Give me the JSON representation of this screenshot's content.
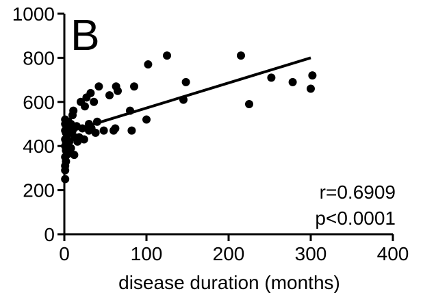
{
  "chart_data": {
    "type": "scatter",
    "panel_label": "B",
    "title": "",
    "xlabel": "disease duration (months)",
    "ylabel": "",
    "xlim": [
      0,
      400
    ],
    "ylim": [
      0,
      1000
    ],
    "x_ticks": [
      0,
      100,
      200,
      300,
      400
    ],
    "y_ticks": [
      0,
      200,
      400,
      600,
      800,
      1000
    ],
    "x_tick_labels": [
      "0",
      "100",
      "200",
      "300",
      "400"
    ],
    "y_tick_labels": [
      "0",
      "200",
      "400",
      "600",
      "800",
      "1000"
    ],
    "grid": false,
    "annotations": [
      "r=0.6909",
      "p<0.0001"
    ],
    "series": [
      {
        "values": [
          [
            1,
            250
          ],
          [
            1,
            290
          ],
          [
            1,
            310
          ],
          [
            1,
            350
          ],
          [
            1,
            400
          ],
          [
            1,
            430
          ],
          [
            1,
            470
          ],
          [
            1,
            500
          ],
          [
            1,
            520
          ],
          [
            2,
            330
          ],
          [
            2,
            380
          ],
          [
            2,
            420
          ],
          [
            2,
            460
          ],
          [
            2,
            510
          ],
          [
            3,
            360
          ],
          [
            3,
            440
          ],
          [
            3,
            490
          ],
          [
            4,
            410
          ],
          [
            4,
            480
          ],
          [
            5,
            370
          ],
          [
            5,
            460
          ],
          [
            5,
            510
          ],
          [
            6,
            420
          ],
          [
            7,
            460
          ],
          [
            8,
            500
          ],
          [
            8,
            390
          ],
          [
            10,
            540
          ],
          [
            10,
            470
          ],
          [
            11,
            560
          ],
          [
            12,
            360
          ],
          [
            13,
            440
          ],
          [
            15,
            490
          ],
          [
            16,
            420
          ],
          [
            18,
            440
          ],
          [
            20,
            600
          ],
          [
            22,
            480
          ],
          [
            24,
            430
          ],
          [
            25,
            580
          ],
          [
            27,
            620
          ],
          [
            30,
            500
          ],
          [
            30,
            470
          ],
          [
            32,
            640
          ],
          [
            33,
            480
          ],
          [
            36,
            600
          ],
          [
            38,
            460
          ],
          [
            40,
            510
          ],
          [
            42,
            670
          ],
          [
            48,
            470
          ],
          [
            55,
            630
          ],
          [
            60,
            470
          ],
          [
            62,
            480
          ],
          [
            63,
            670
          ],
          [
            65,
            650
          ],
          [
            80,
            560
          ],
          [
            82,
            470
          ],
          [
            85,
            670
          ],
          [
            100,
            520
          ],
          [
            102,
            770
          ],
          [
            125,
            810
          ],
          [
            145,
            610
          ],
          [
            148,
            690
          ],
          [
            215,
            810
          ],
          [
            225,
            590
          ],
          [
            252,
            710
          ],
          [
            278,
            690
          ],
          [
            300,
            660
          ],
          [
            302,
            720
          ]
        ]
      }
    ],
    "fit_line": {
      "x": [
        10,
        300
      ],
      "y": [
        470,
        800
      ]
    }
  }
}
